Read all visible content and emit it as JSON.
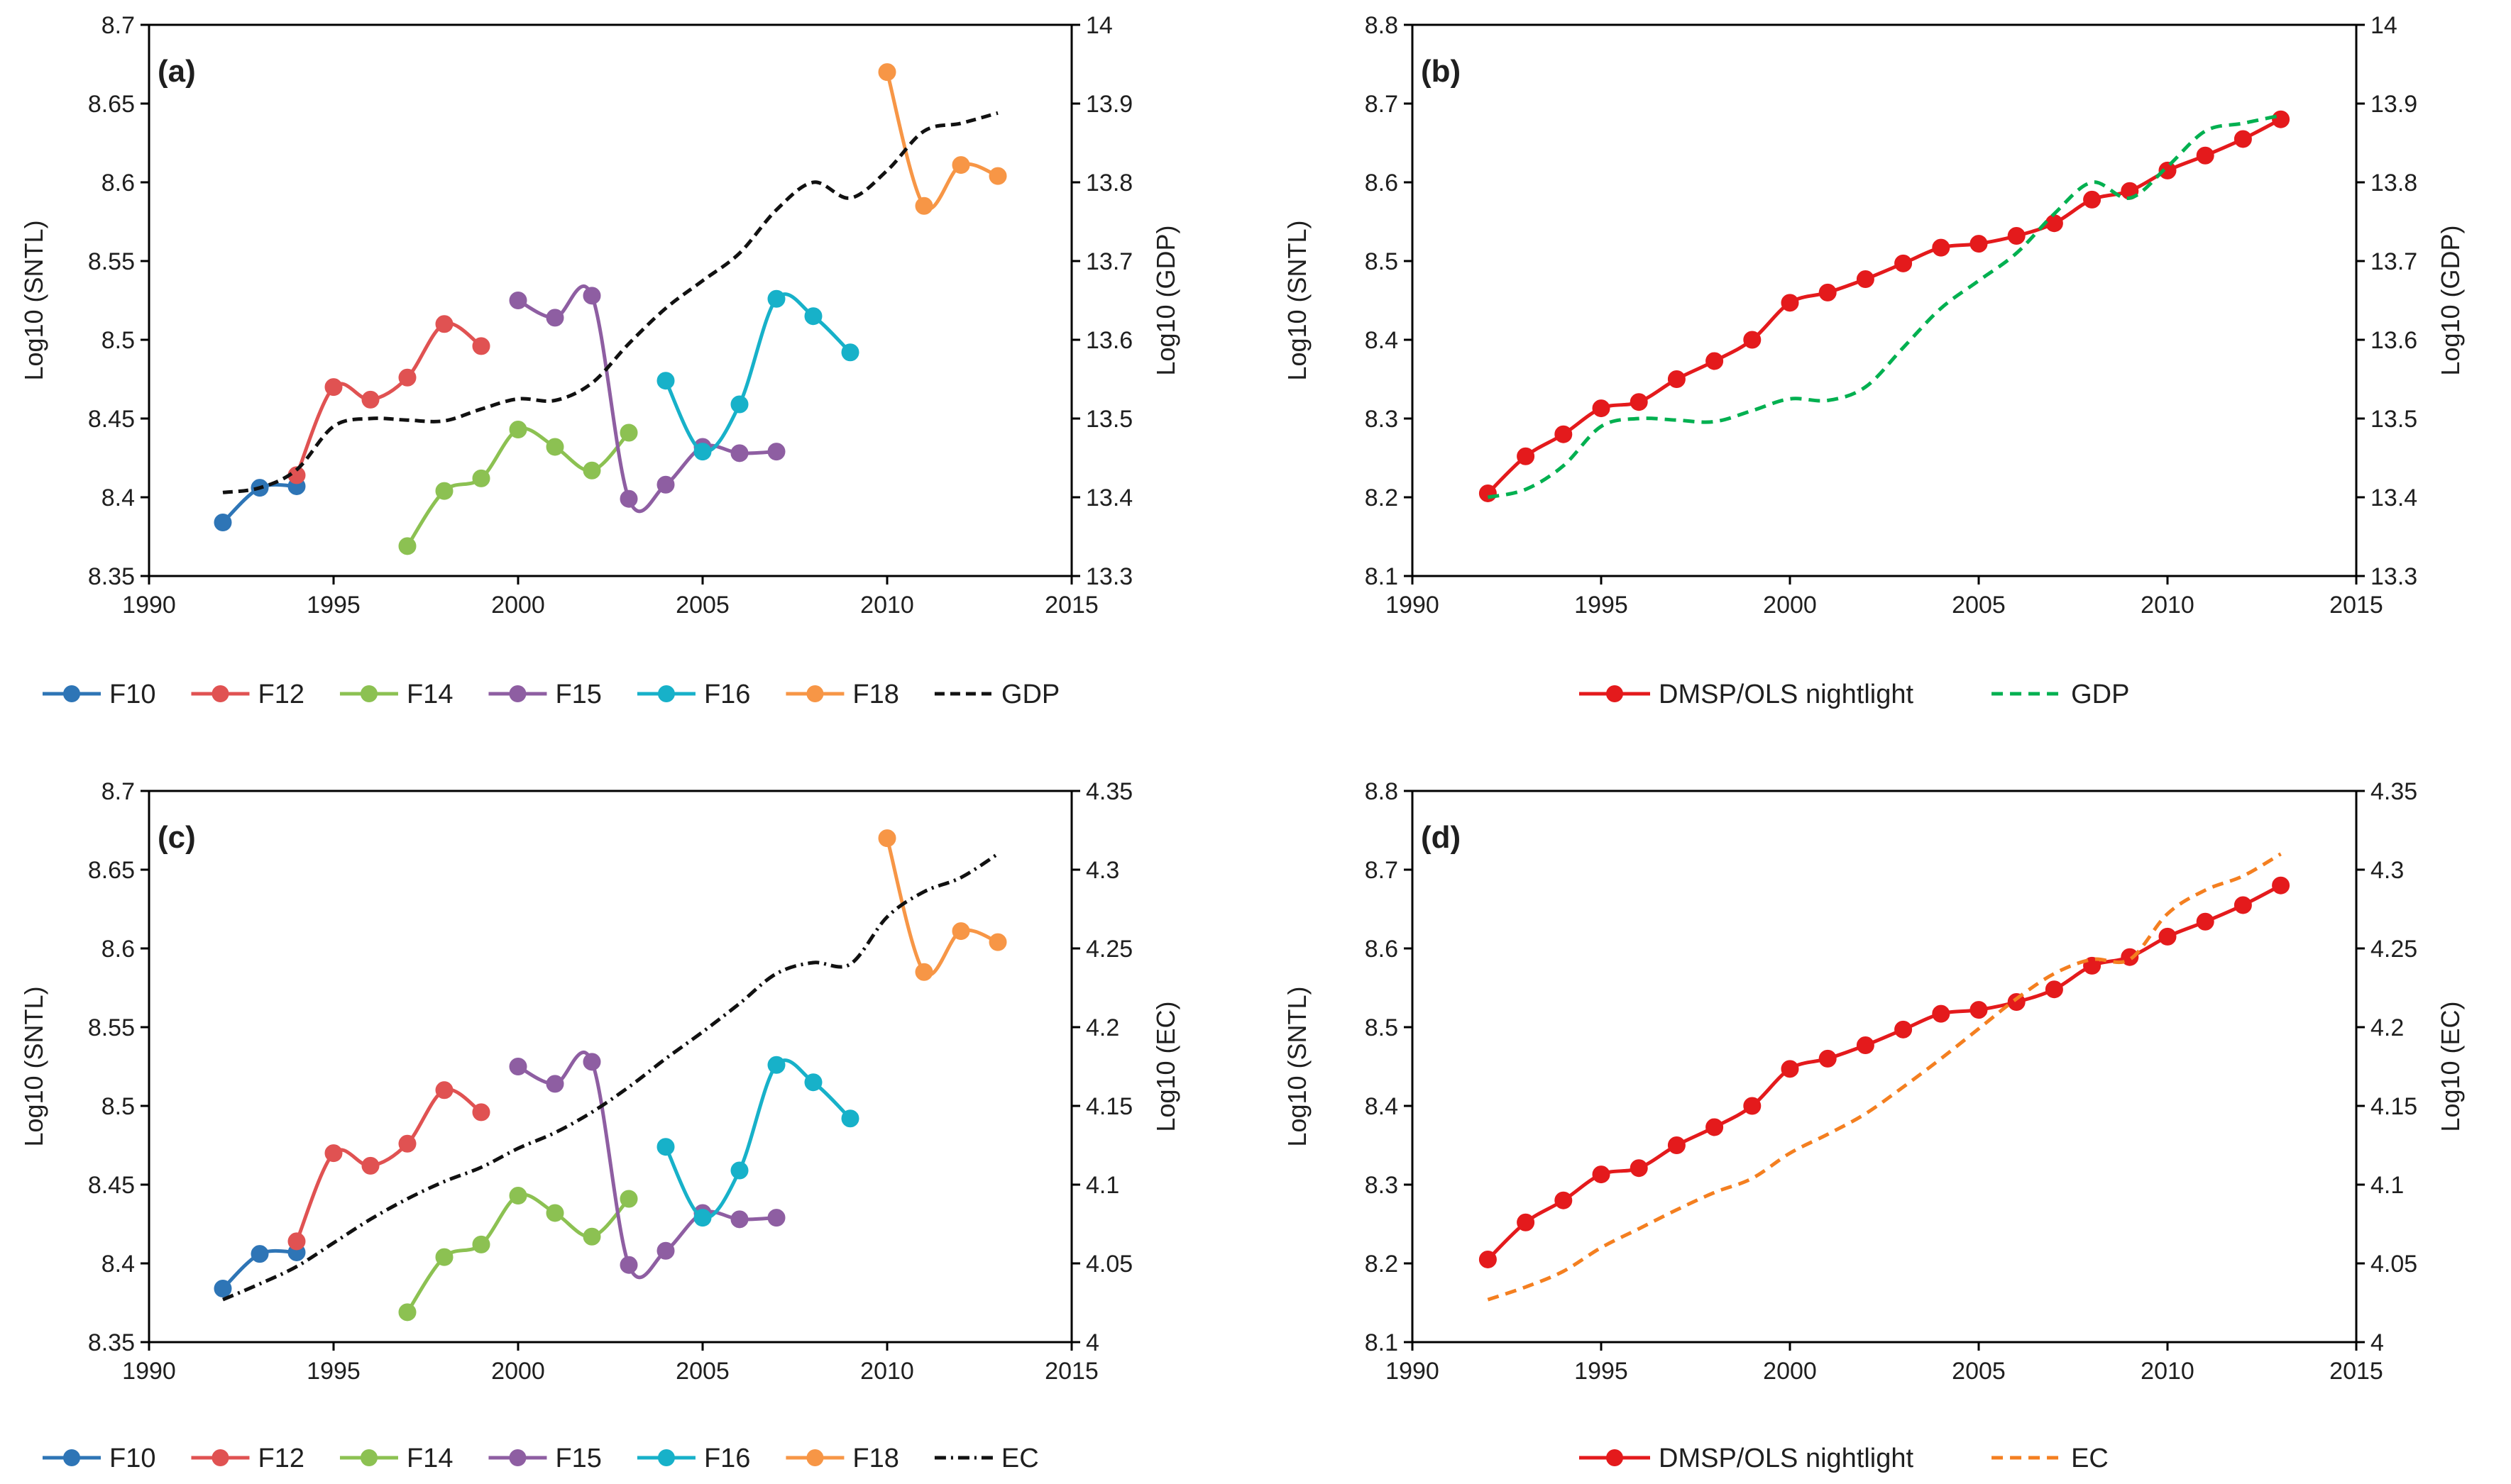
{
  "chart_data": [
    {
      "id": "a",
      "type": "line",
      "panel_label": "(a)",
      "xlabel": "",
      "ylabel": "Log10 (SNTL)",
      "y2label": "Log10 (GDP)",
      "xlim": [
        1990,
        2015
      ],
      "xticks": [
        1990,
        1995,
        2000,
        2005,
        2010,
        2015
      ],
      "ylim": [
        8.35,
        8.7
      ],
      "yticks": [
        8.35,
        8.4,
        8.45,
        8.5,
        8.55,
        8.6,
        8.65,
        8.7
      ],
      "y2lim": [
        13.3,
        14.0
      ],
      "y2ticks": [
        13.3,
        13.4,
        13.5,
        13.6,
        13.7,
        13.8,
        13.9,
        14
      ],
      "legend_position": "bottom",
      "series": [
        {
          "name": "F10",
          "axis": "left",
          "color": "#2e75b6",
          "marker": true,
          "dash": "",
          "x": [
            1992,
            1993,
            1994
          ],
          "values": [
            8.384,
            8.406,
            8.407
          ]
        },
        {
          "name": "F12",
          "axis": "left",
          "color": "#e05252",
          "marker": true,
          "dash": "",
          "x": [
            1994,
            1995,
            1996,
            1997,
            1998,
            1999
          ],
          "values": [
            8.414,
            8.47,
            8.462,
            8.476,
            8.51,
            8.496
          ]
        },
        {
          "name": "F14",
          "axis": "left",
          "color": "#8cc152",
          "marker": true,
          "dash": "",
          "x": [
            1997,
            1998,
            1999,
            2000,
            2001,
            2002,
            2003
          ],
          "values": [
            8.369,
            8.404,
            8.412,
            8.443,
            8.432,
            8.417,
            8.441
          ]
        },
        {
          "name": "F15",
          "axis": "left",
          "color": "#8e5ea2",
          "marker": true,
          "dash": "",
          "x": [
            2000,
            2001,
            2002,
            2003,
            2004,
            2005,
            2006,
            2007
          ],
          "values": [
            8.525,
            8.514,
            8.528,
            8.399,
            8.408,
            8.432,
            8.428,
            8.429
          ]
        },
        {
          "name": "F16",
          "axis": "left",
          "color": "#17b1c9",
          "marker": true,
          "dash": "",
          "x": [
            2004,
            2005,
            2006,
            2007,
            2008,
            2009
          ],
          "values": [
            8.474,
            8.429,
            8.459,
            8.526,
            8.515,
            8.492
          ]
        },
        {
          "name": "F18",
          "axis": "left",
          "color": "#f79646",
          "marker": true,
          "dash": "",
          "x": [
            2010,
            2011,
            2012,
            2013
          ],
          "values": [
            8.67,
            8.585,
            8.611,
            8.604
          ]
        },
        {
          "name": "GDP",
          "axis": "right",
          "color": "#111111",
          "marker": false,
          "dash": "14 8",
          "x": [
            1992,
            1993,
            1994,
            1995,
            1996,
            1997,
            1998,
            1999,
            2000,
            2001,
            2002,
            2003,
            2004,
            2005,
            2006,
            2007,
            2008,
            2009,
            2010,
            2011,
            2012,
            2013
          ],
          "values": [
            13.406,
            13.412,
            13.435,
            13.49,
            13.5,
            13.498,
            13.497,
            13.512,
            13.525,
            13.523,
            13.545,
            13.595,
            13.64,
            13.675,
            13.71,
            13.765,
            13.8,
            13.78,
            13.815,
            13.865,
            13.875,
            13.888
          ]
        }
      ]
    },
    {
      "id": "b",
      "type": "line",
      "panel_label": "(b)",
      "xlabel": "",
      "ylabel": "Log10 (SNTL)",
      "y2label": "Log10 (GDP)",
      "xlim": [
        1990,
        2015
      ],
      "xticks": [
        1990,
        1995,
        2000,
        2005,
        2010,
        2015
      ],
      "ylim": [
        8.1,
        8.8
      ],
      "yticks": [
        8.1,
        8.2,
        8.3,
        8.4,
        8.5,
        8.6,
        8.7,
        8.8
      ],
      "y2lim": [
        13.3,
        14.0
      ],
      "y2ticks": [
        13.3,
        13.4,
        13.5,
        13.6,
        13.7,
        13.8,
        13.9,
        14
      ],
      "legend_position": "bottom",
      "series": [
        {
          "name": "DMSP/OLS nightlight",
          "axis": "left",
          "color": "#e41a1c",
          "marker": true,
          "dash": "",
          "x": [
            1992,
            1993,
            1994,
            1995,
            1996,
            1997,
            1998,
            1999,
            2000,
            2001,
            2002,
            2003,
            2004,
            2005,
            2006,
            2007,
            2008,
            2009,
            2010,
            2011,
            2012,
            2013
          ],
          "values": [
            8.205,
            8.252,
            8.28,
            8.313,
            8.321,
            8.35,
            8.373,
            8.4,
            8.447,
            8.46,
            8.477,
            8.497,
            8.517,
            8.522,
            8.532,
            8.548,
            8.578,
            8.589,
            8.615,
            8.634,
            8.655,
            8.68
          ]
        },
        {
          "name": "GDP",
          "axis": "right",
          "color": "#00b050",
          "marker": false,
          "dash": "16 10",
          "x": [
            1992,
            1993,
            1994,
            1995,
            1996,
            1997,
            1998,
            1999,
            2000,
            2001,
            2002,
            2003,
            2004,
            2005,
            2006,
            2007,
            2008,
            2009,
            2010,
            2011,
            2012,
            2013
          ],
          "values": [
            13.4,
            13.41,
            13.44,
            13.49,
            13.5,
            13.498,
            13.496,
            13.51,
            13.525,
            13.523,
            13.54,
            13.59,
            13.64,
            13.675,
            13.71,
            13.76,
            13.8,
            13.78,
            13.82,
            13.865,
            13.875,
            13.885
          ]
        }
      ]
    },
    {
      "id": "c",
      "type": "line",
      "panel_label": "(c)",
      "xlabel": "",
      "ylabel": "Log10 (SNTL)",
      "y2label": "Log10 (EC)",
      "xlim": [
        1990,
        2015
      ],
      "xticks": [
        1990,
        1995,
        2000,
        2005,
        2010,
        2015
      ],
      "ylim": [
        8.35,
        8.7
      ],
      "yticks": [
        8.35,
        8.4,
        8.45,
        8.5,
        8.55,
        8.6,
        8.65,
        8.7
      ],
      "y2lim": [
        4.0,
        4.35
      ],
      "y2ticks": [
        4,
        4.05,
        4.1,
        4.15,
        4.2,
        4.25,
        4.3,
        4.35
      ],
      "legend_position": "bottom",
      "series": [
        {
          "name": "F10",
          "axis": "left",
          "color": "#2e75b6",
          "marker": true,
          "dash": "",
          "x": [
            1992,
            1993,
            1994
          ],
          "values": [
            8.384,
            8.406,
            8.407
          ]
        },
        {
          "name": "F12",
          "axis": "left",
          "color": "#e05252",
          "marker": true,
          "dash": "",
          "x": [
            1994,
            1995,
            1996,
            1997,
            1998,
            1999
          ],
          "values": [
            8.414,
            8.47,
            8.462,
            8.476,
            8.51,
            8.496
          ]
        },
        {
          "name": "F14",
          "axis": "left",
          "color": "#8cc152",
          "marker": true,
          "dash": "",
          "x": [
            1997,
            1998,
            1999,
            2000,
            2001,
            2002,
            2003
          ],
          "values": [
            8.369,
            8.404,
            8.412,
            8.443,
            8.432,
            8.417,
            8.441
          ]
        },
        {
          "name": "F15",
          "axis": "left",
          "color": "#8e5ea2",
          "marker": true,
          "dash": "",
          "x": [
            2000,
            2001,
            2002,
            2003,
            2004,
            2005,
            2006,
            2007
          ],
          "values": [
            8.525,
            8.514,
            8.528,
            8.399,
            8.408,
            8.432,
            8.428,
            8.429
          ]
        },
        {
          "name": "F16",
          "axis": "left",
          "color": "#17b1c9",
          "marker": true,
          "dash": "",
          "x": [
            2004,
            2005,
            2006,
            2007,
            2008,
            2009
          ],
          "values": [
            8.474,
            8.429,
            8.459,
            8.526,
            8.515,
            8.492
          ]
        },
        {
          "name": "F18",
          "axis": "left",
          "color": "#f79646",
          "marker": true,
          "dash": "",
          "x": [
            2010,
            2011,
            2012,
            2013
          ],
          "values": [
            8.67,
            8.585,
            8.611,
            8.604
          ]
        },
        {
          "name": "EC",
          "axis": "right",
          "color": "#111111",
          "marker": false,
          "dash": "16 7 3 7",
          "x": [
            1992,
            1993,
            1994,
            1995,
            1996,
            1997,
            1998,
            1999,
            2000,
            2001,
            2002,
            2003,
            2004,
            2005,
            2006,
            2007,
            2008,
            2009,
            2010,
            2011,
            2012,
            2013
          ],
          "values": [
            4.027,
            4.037,
            4.048,
            4.063,
            4.078,
            4.091,
            4.102,
            4.111,
            4.123,
            4.133,
            4.146,
            4.162,
            4.18,
            4.197,
            4.215,
            4.234,
            4.241,
            4.24,
            4.27,
            4.286,
            4.295,
            4.31
          ]
        }
      ]
    },
    {
      "id": "d",
      "type": "line",
      "panel_label": "(d)",
      "xlabel": "",
      "ylabel": "Log10 (SNTL)",
      "y2label": "Log10 (EC)",
      "xlim": [
        1990,
        2015
      ],
      "xticks": [
        1990,
        1995,
        2000,
        2005,
        2010,
        2015
      ],
      "ylim": [
        8.1,
        8.8
      ],
      "yticks": [
        8.1,
        8.2,
        8.3,
        8.4,
        8.5,
        8.6,
        8.7,
        8.8
      ],
      "y2lim": [
        4.0,
        4.35
      ],
      "y2ticks": [
        4,
        4.05,
        4.1,
        4.15,
        4.2,
        4.25,
        4.3,
        4.35
      ],
      "legend_position": "bottom",
      "series": [
        {
          "name": "DMSP/OLS nightlight",
          "axis": "left",
          "color": "#e41a1c",
          "marker": true,
          "dash": "",
          "x": [
            1992,
            1993,
            1994,
            1995,
            1996,
            1997,
            1998,
            1999,
            2000,
            2001,
            2002,
            2003,
            2004,
            2005,
            2006,
            2007,
            2008,
            2009,
            2010,
            2011,
            2012,
            2013
          ],
          "values": [
            8.205,
            8.252,
            8.28,
            8.313,
            8.321,
            8.35,
            8.373,
            8.4,
            8.447,
            8.46,
            8.477,
            8.497,
            8.517,
            8.522,
            8.532,
            8.548,
            8.578,
            8.589,
            8.615,
            8.634,
            8.655,
            8.68
          ]
        },
        {
          "name": "EC",
          "axis": "right",
          "color": "#f47f20",
          "marker": false,
          "dash": "16 10",
          "x": [
            1992,
            1993,
            1994,
            1995,
            1996,
            1997,
            1998,
            1999,
            2000,
            2001,
            2002,
            2003,
            2004,
            2005,
            2006,
            2007,
            2008,
            2009,
            2010,
            2011,
            2012,
            2013
          ],
          "values": [
            4.027,
            4.035,
            4.045,
            4.06,
            4.072,
            4.084,
            4.095,
            4.104,
            4.12,
            4.132,
            4.145,
            4.162,
            4.18,
            4.199,
            4.218,
            4.234,
            4.243,
            4.243,
            4.272,
            4.287,
            4.296,
            4.31
          ]
        }
      ]
    }
  ]
}
